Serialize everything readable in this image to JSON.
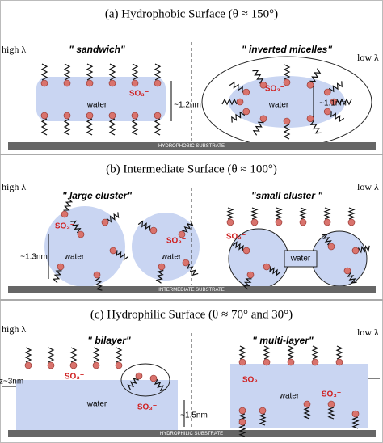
{
  "panels": [
    {
      "title": "(a) Hydrophobic Surface (θ ≈ 150°)",
      "left": {
        "lambda": "high λ",
        "label": "\" sandwich\"",
        "texts": [
          "SO₃⁻",
          "water",
          "~1.2nm"
        ]
      },
      "right": {
        "lambda": "low λ",
        "label": "\" inverted micelles\"",
        "texts": [
          "SO₃⁻",
          "water",
          "~1.1nm"
        ]
      },
      "substrate": "HYDROPHOBIC SUBSTRATE"
    },
    {
      "title": "(b) Intermediate Surface (θ ≈ 100°)",
      "left": {
        "lambda": "high λ",
        "label": "\" large cluster\"",
        "texts": [
          "SO₃⁻",
          "SO₃⁻",
          "water",
          "water",
          "~1.3nm"
        ]
      },
      "right": {
        "lambda": "low λ",
        "label": "\"small cluster \"",
        "texts": [
          "SO₃⁻",
          "water"
        ]
      },
      "substrate": "INTERMEDIATE SUBSTRATE"
    },
    {
      "title": "(c) Hydrophilic Surface (θ ≈ 70° and 30°)",
      "left": {
        "lambda": "high λ",
        "label": "\" bilayer\"",
        "texts": [
          "z~3nm",
          "SO₃⁻",
          "water",
          "SO₃⁻",
          "~1.5nm"
        ]
      },
      "right": {
        "lambda": "low λ",
        "label": "\" multi-layer\"",
        "texts": [
          "SO₃⁻",
          "water",
          "SO₃⁻"
        ]
      },
      "substrate": "HYDROPHILIC SUBSTRATE"
    }
  ]
}
